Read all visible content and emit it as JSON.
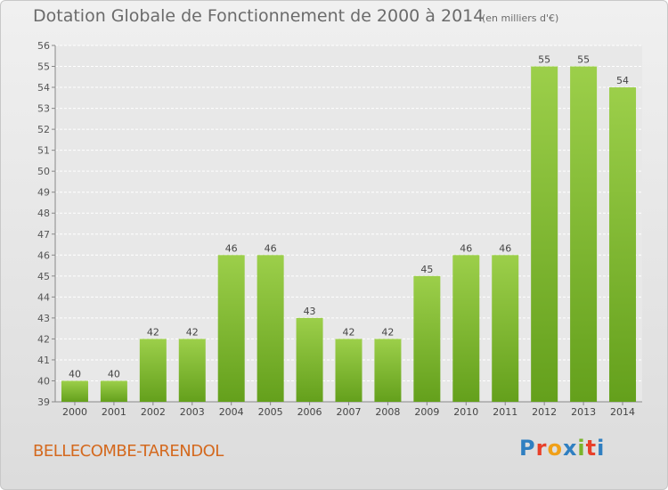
{
  "header": {
    "title": "Dotation Globale de Fonctionnement de 2000 à 2014",
    "unit": "(en milliers d'€)"
  },
  "footer": {
    "commune": "BELLECOMBE-TARENDOL",
    "logo_text": "Proxiti",
    "logo_colors": [
      "#2f7fc1",
      "#e8402a",
      "#f0a018",
      "#2f7fc1",
      "#7ab42a",
      "#e8402a",
      "#2f7fc1"
    ]
  },
  "chart_data": {
    "type": "bar",
    "title": "Dotation Globale de Fonctionnement de 2000 à 2014",
    "subtitle": "(en milliers d'€)",
    "categories": [
      "2000",
      "2001",
      "2002",
      "2003",
      "2004",
      "2005",
      "2006",
      "2007",
      "2008",
      "2009",
      "2010",
      "2011",
      "2012",
      "2013",
      "2014"
    ],
    "values": [
      40,
      40,
      42,
      42,
      46,
      46,
      43,
      42,
      42,
      45,
      46,
      46,
      55,
      55,
      54
    ],
    "ylim": [
      39,
      56
    ],
    "yticks": [
      39,
      40,
      41,
      42,
      43,
      44,
      45,
      46,
      47,
      48,
      49,
      50,
      51,
      52,
      53,
      54,
      55,
      56
    ],
    "grid": true,
    "bar_color": "#8cc43a",
    "bar_color_dark": "#6aa020"
  }
}
